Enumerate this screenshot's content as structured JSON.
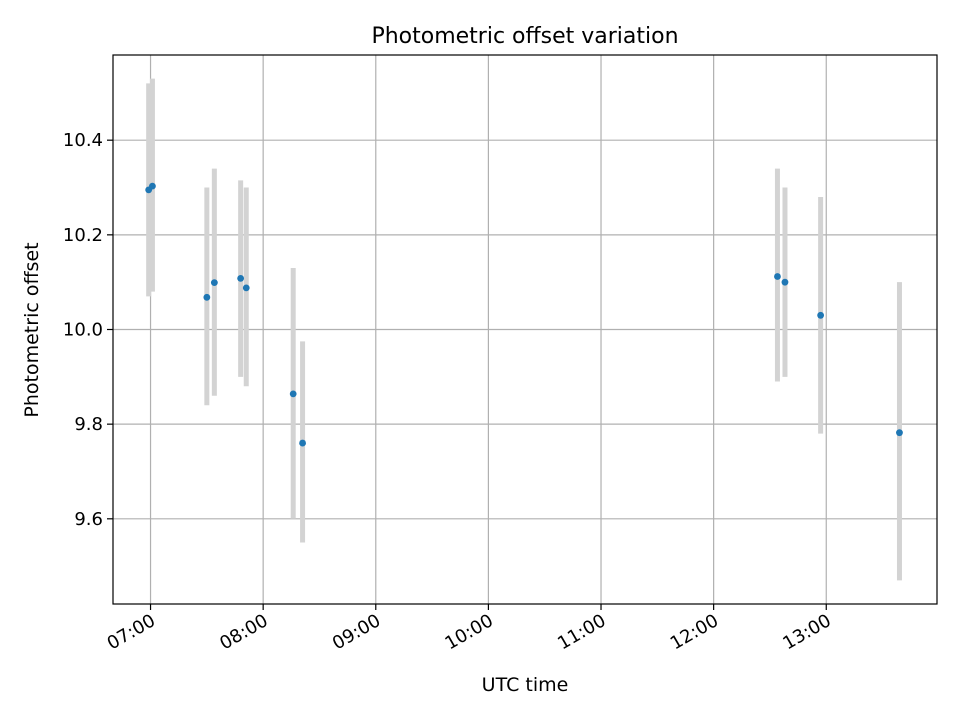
{
  "chart_data": {
    "type": "scatter",
    "title": "Photometric offset variation",
    "xlabel": "UTC time",
    "ylabel": "Photometric offset",
    "x_axis": "time (HH:MM)",
    "xlim": [
      "06:40",
      "13:59"
    ],
    "ylim": [
      9.42,
      10.58
    ],
    "x_ticks": [
      "07:00",
      "08:00",
      "09:00",
      "10:00",
      "11:00",
      "12:00",
      "13:00"
    ],
    "y_ticks": [
      9.6,
      9.8,
      10.0,
      10.2,
      10.4
    ],
    "y_tick_labels": [
      "9.6",
      "9.8",
      "10.0",
      "10.2",
      "10.4"
    ],
    "grid": true,
    "legend": "none",
    "series": [
      {
        "marker": "dot",
        "color": "#1f77b4",
        "errorbar_color": "#d3d3d3",
        "points": [
          {
            "x": "06:59",
            "y": 10.295,
            "err_low": 10.07,
            "err_high": 10.52
          },
          {
            "x": "07:01",
            "y": 10.303,
            "err_low": 10.08,
            "err_high": 10.53
          },
          {
            "x": "07:30",
            "y": 10.068,
            "err_low": 9.84,
            "err_high": 10.3
          },
          {
            "x": "07:34",
            "y": 10.099,
            "err_low": 9.86,
            "err_high": 10.34
          },
          {
            "x": "07:48",
            "y": 10.108,
            "err_low": 9.9,
            "err_high": 10.315
          },
          {
            "x": "07:51",
            "y": 10.088,
            "err_low": 9.88,
            "err_high": 10.3
          },
          {
            "x": "08:16",
            "y": 9.864,
            "err_low": 9.6,
            "err_high": 10.13
          },
          {
            "x": "08:21",
            "y": 9.76,
            "err_low": 9.55,
            "err_high": 9.975
          },
          {
            "x": "12:34",
            "y": 10.112,
            "err_low": 9.89,
            "err_high": 10.34
          },
          {
            "x": "12:38",
            "y": 10.1,
            "err_low": 9.9,
            "err_high": 10.3
          },
          {
            "x": "12:57",
            "y": 10.03,
            "err_low": 9.78,
            "err_high": 10.28
          },
          {
            "x": "13:39",
            "y": 9.782,
            "err_low": 9.47,
            "err_high": 10.1
          }
        ]
      }
    ]
  }
}
